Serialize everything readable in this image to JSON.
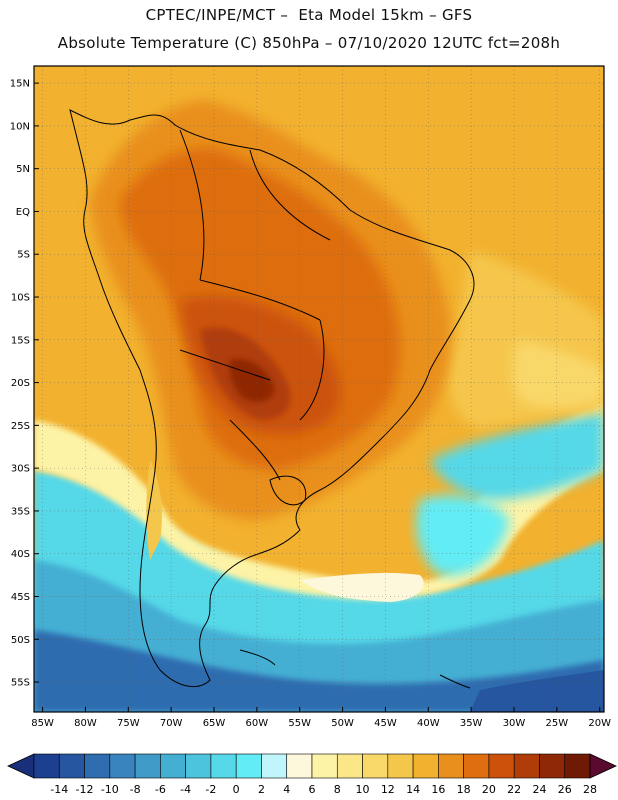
{
  "header": {
    "line1": "CPTEC/INPE/MCT –  Eta Model 15km – GFS",
    "line2": "Absolute Temperature (C) 850hPa – 07/10/2020 12UTC fct=208h"
  },
  "map": {
    "lat_labels": [
      "15N",
      "10N",
      "5N",
      "EQ",
      "5S",
      "10S",
      "15S",
      "20S",
      "25S",
      "30S",
      "35S",
      "40S",
      "45S",
      "50S",
      "55S"
    ],
    "lon_labels": [
      "85W",
      "80W",
      "75W",
      "70W",
      "65W",
      "60W",
      "55W",
      "50W",
      "45W",
      "40W",
      "35W",
      "30W",
      "25W",
      "20W"
    ],
    "grid": true
  },
  "colorbar": {
    "ticks": [
      "-14",
      "-12",
      "-10",
      "-8",
      "-6",
      "-4",
      "-2",
      "0",
      "2",
      "4",
      "6",
      "8",
      "10",
      "12",
      "14",
      "16",
      "18",
      "20",
      "22",
      "24",
      "26",
      "28"
    ],
    "colors": [
      "#1d3f8f",
      "#2656a0",
      "#2f6cb0",
      "#3984bf",
      "#3f9ac8",
      "#45afd3",
      "#4cc4dd",
      "#55d8e8",
      "#62ecf5",
      "#bff5fb",
      "#fdf7dc",
      "#fdf3a6",
      "#fbe788",
      "#f9d86a",
      "#f5c64c",
      "#f2b12e",
      "#e98f1e",
      "#de6e10",
      "#cc520b",
      "#b03c08",
      "#8f2806",
      "#6f1a04"
    ],
    "underflow_color": "#1a2f7a",
    "overflow_color": "#5a0a2e"
  }
}
